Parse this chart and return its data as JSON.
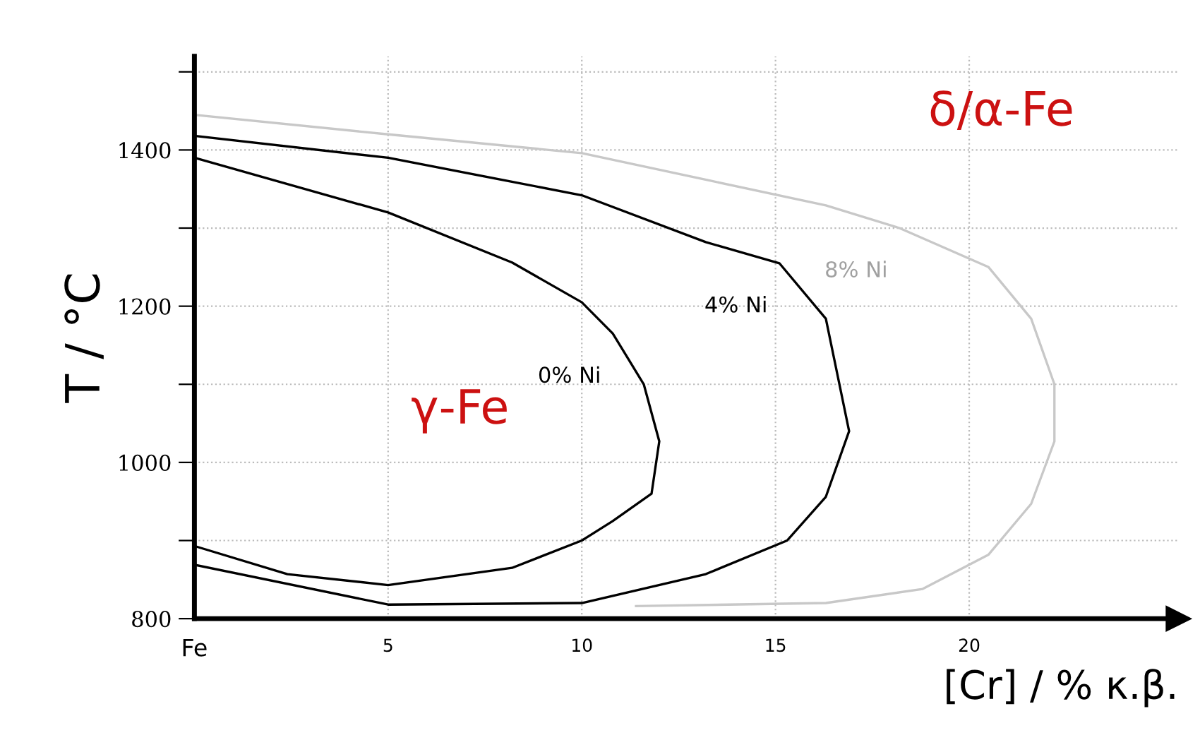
{
  "chart_data": {
    "type": "line",
    "xlabel": "[Cr] / % κ.β.",
    "ylabel": "T / °C",
    "xlim": [
      0,
      25.4
    ],
    "ylim": [
      800,
      1520
    ],
    "xticks": [
      {
        "value": 0,
        "label": "Fe"
      },
      5,
      10,
      15,
      20
    ],
    "yticks": [
      800,
      {
        "value": 900,
        "label": null
      },
      1000,
      {
        "value": 1100,
        "label": null
      },
      1200,
      {
        "value": 1300,
        "label": null
      },
      1400,
      {
        "value": 1500,
        "label": null
      }
    ],
    "grid": true,
    "marker": "none",
    "line_style": "solid",
    "series": [
      {
        "name": "0% Ni",
        "color": "#000000",
        "x": [
          0,
          5,
          8.2,
          10,
          10.8,
          11.6,
          12.0,
          11.8,
          10.8,
          10,
          8.2,
          5,
          2.4,
          0
        ],
        "values": [
          1390,
          1320,
          1256,
          1205,
          1165,
          1100,
          1027,
          960,
          925,
          900,
          865,
          843,
          857,
          893
        ]
      },
      {
        "name": "4% Ni",
        "color": "#000000",
        "x": [
          0,
          5,
          10,
          13.2,
          15.1,
          16.3,
          16.9,
          16.3,
          15.3,
          13.2,
          10,
          5,
          0
        ],
        "values": [
          1418,
          1390,
          1342,
          1282,
          1255,
          1184,
          1040,
          956,
          900,
          857,
          820,
          818,
          869
        ]
      },
      {
        "name": "8% Ni",
        "color": "#c8c8c8",
        "x": [
          0,
          5,
          10,
          16.3,
          18.2,
          20.5,
          21.6,
          22.2,
          22.2,
          21.6,
          20.5,
          18.8,
          16.3,
          11.4
        ],
        "values": [
          1445,
          1420,
          1396,
          1329,
          1300,
          1250,
          1184,
          1100,
          1027,
          947,
          882,
          838,
          820,
          816
        ]
      }
    ],
    "annotations": [
      "γ-Fe",
      "δ/α-Fe"
    ]
  }
}
